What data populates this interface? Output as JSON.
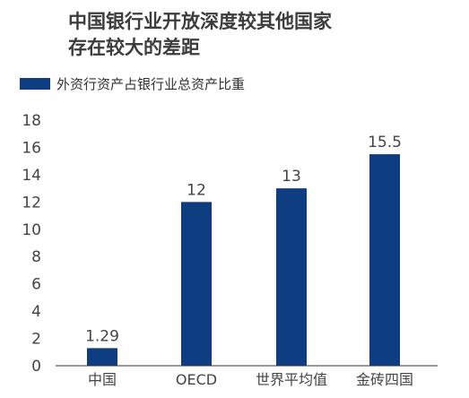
{
  "chart_data": {
    "type": "bar",
    "title": "中国银行业开放深度较其他国家存在较大的差距",
    "title_lines": [
      "中国银行业开放深度较其他国家",
      "存在较大的差距"
    ],
    "xlabel": "",
    "ylabel": "",
    "categories": [
      "中国",
      "OECD",
      "世界平均值",
      "金砖四国"
    ],
    "series": [
      {
        "name": "外资行资产占银行业总资产比重",
        "values": [
          1.29,
          12,
          13,
          15.5
        ]
      }
    ],
    "value_labels": [
      "1.29",
      "12",
      "13",
      "15.5"
    ],
    "ylim": [
      0,
      18
    ],
    "yticks": [
      0,
      2,
      4,
      6,
      8,
      10,
      12,
      14,
      16,
      18
    ],
    "ytick_labels": [
      "0",
      "2",
      "4",
      "6",
      "8",
      "10",
      "12",
      "14",
      "16",
      "18"
    ],
    "grid": false,
    "legend_position": "top-left",
    "colors": {
      "bar": "#0f3d82",
      "axis": "#333333",
      "text": "#444444"
    }
  }
}
